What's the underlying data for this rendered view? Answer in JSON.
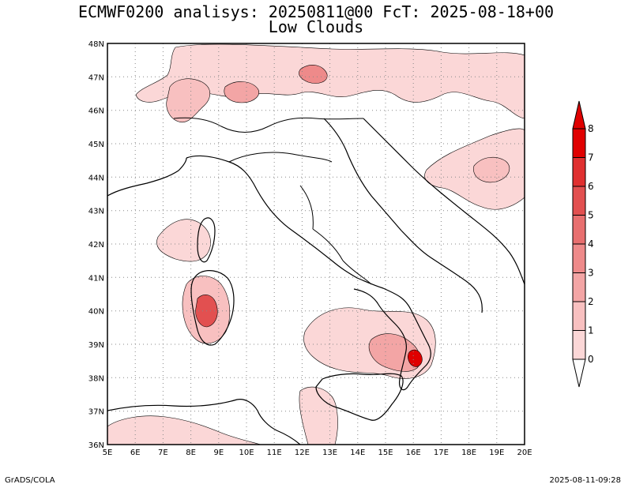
{
  "title_line1": "ECMWF0200 analisys: 20250811@00 FcT: 2025-08-18+00",
  "title_line2": "Low Clouds",
  "footer_left": "GrADS/COLA",
  "footer_right": "2025-08-11-09:28",
  "map": {
    "lon_labels": [
      "5E",
      "6E",
      "7E",
      "8E",
      "9E",
      "10E",
      "11E",
      "12E",
      "13E",
      "14E",
      "15E",
      "16E",
      "17E",
      "18E",
      "19E",
      "20E"
    ],
    "lat_labels": [
      "48N",
      "47N",
      "46N",
      "45N",
      "44N",
      "43N",
      "42N",
      "41N",
      "40N",
      "39N",
      "38N",
      "37N",
      "36N"
    ],
    "grid": true,
    "grid_style": "dotted"
  },
  "colorbar": {
    "labels": [
      "0",
      "1",
      "2",
      "3",
      "4",
      "5",
      "6",
      "7",
      "8"
    ],
    "colors": [
      "#fff0f0",
      "#fbd7d7",
      "#f8c0c0",
      "#f3a5a5",
      "#ee8a8a",
      "#e86f6f",
      "#e25050",
      "#e03030",
      "#e00000"
    ]
  }
}
